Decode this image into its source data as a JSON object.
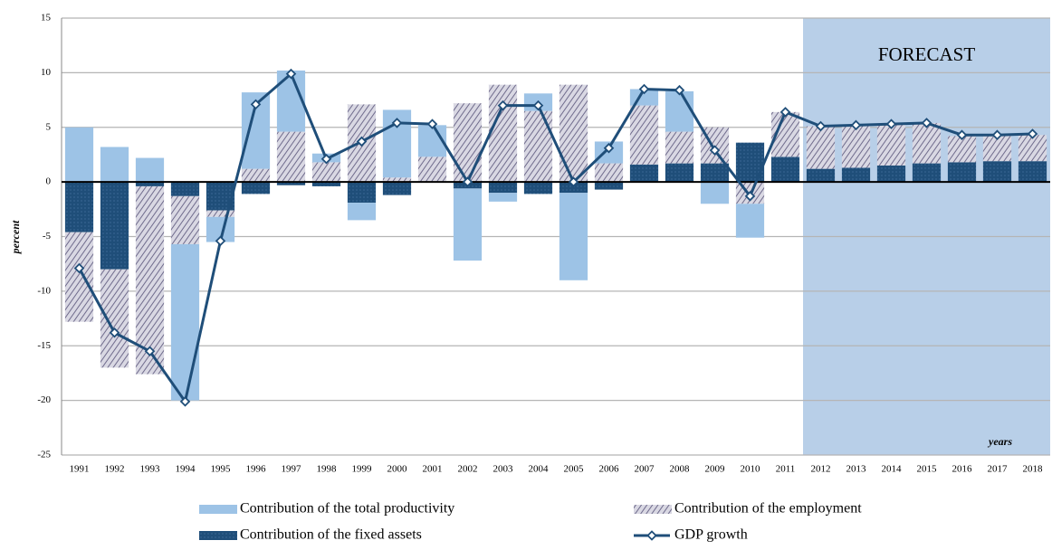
{
  "chart_data": {
    "type": "bar",
    "y_label": "percent",
    "forecast": {
      "label": "FORECAST",
      "from": "2012"
    },
    "x_label": "years",
    "categories": [
      "1991",
      "1992",
      "1993",
      "1994",
      "1995",
      "1996",
      "1997",
      "1998",
      "1999",
      "2000",
      "2001",
      "2002",
      "2003",
      "2004",
      "2005",
      "2006",
      "2007",
      "2008",
      "2009",
      "2010",
      "2011",
      "2012",
      "2013",
      "2014",
      "2015",
      "2016",
      "2017",
      "2018"
    ],
    "series": [
      {
        "name": "Contribution of the fixed assets",
        "color": "#1f4e79",
        "values": [
          -4.6,
          -8,
          -0.4,
          -1.3,
          -2.6,
          -1.1,
          -0.3,
          -0.4,
          -1.9,
          -1.2,
          0,
          -0.6,
          -1.0,
          -1.1,
          -1,
          -0.7,
          1.6,
          1.7,
          1.7,
          3.6,
          2.3,
          1.2,
          1.3,
          1.5,
          1.7,
          1.8,
          1.9,
          1.9
        ]
      },
      {
        "name": "Contribution of the employment",
        "color": "#8e8aa8",
        "values": [
          -8.2,
          -9,
          -17.2,
          -4.4,
          -0.6,
          1.2,
          4.6,
          1.8,
          7.1,
          0.4,
          2.3,
          7.2,
          8.9,
          6.5,
          8.9,
          1.7,
          5.4,
          2.9,
          3.3,
          -2,
          4.1,
          3.9,
          3.9,
          3.8,
          3.7,
          2.4,
          2.3,
          2.4
        ]
      },
      {
        "name": "Contribution of the total productivity",
        "color": "#9dc3e6",
        "values": [
          5,
          3.2,
          2.2,
          -14.3,
          -2.3,
          7,
          5.6,
          0.8,
          -1.6,
          6.2,
          2.9,
          -6.6,
          -0.8,
          1.6,
          -8,
          2,
          1.5,
          3.7,
          -2,
          -3.1,
          0,
          0,
          0,
          0,
          0,
          0,
          0,
          0
        ]
      },
      {
        "name": "GDP growth",
        "color": "#1f4e79",
        "type": "line",
        "values": [
          -7.9,
          -13.8,
          -15.5,
          -20.1,
          -5.4,
          7.1,
          9.9,
          2.1,
          3.7,
          5.4,
          5.3,
          0,
          7,
          7,
          0,
          3.1,
          8.5,
          8.4,
          2.9,
          -1.3,
          6.4,
          5.1,
          5.2,
          5.3,
          5.4,
          4.3,
          4.3,
          4.4
        ]
      }
    ],
    "ylim": [
      -25,
      15
    ],
    "yticks": [
      -25,
      -20,
      -15,
      -10,
      -5,
      0,
      5,
      10,
      15
    ],
    "grid": true
  }
}
